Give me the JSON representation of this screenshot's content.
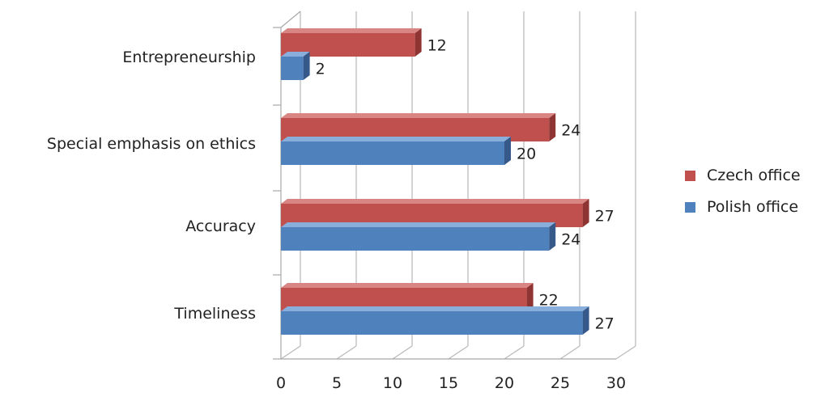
{
  "chart_data": {
    "type": "bar",
    "orientation": "horizontal",
    "style": "3d",
    "categories": [
      "Entrepreneurship",
      "Special emphasis on ethics",
      "Accuracy",
      "Timeliness"
    ],
    "series": [
      {
        "name": "Czech office",
        "color": "#C0504D",
        "values": [
          12,
          24,
          27,
          22
        ]
      },
      {
        "name": "Polish office",
        "color": "#4F81BD",
        "values": [
          2,
          20,
          24,
          27
        ]
      }
    ],
    "x_ticks": [
      "0",
      "5",
      "10",
      "15",
      "20",
      "25",
      "30"
    ],
    "xlim": [
      0,
      30
    ],
    "grid": true,
    "legend_position": "right",
    "title": "",
    "xlabel": "",
    "ylabel": ""
  }
}
